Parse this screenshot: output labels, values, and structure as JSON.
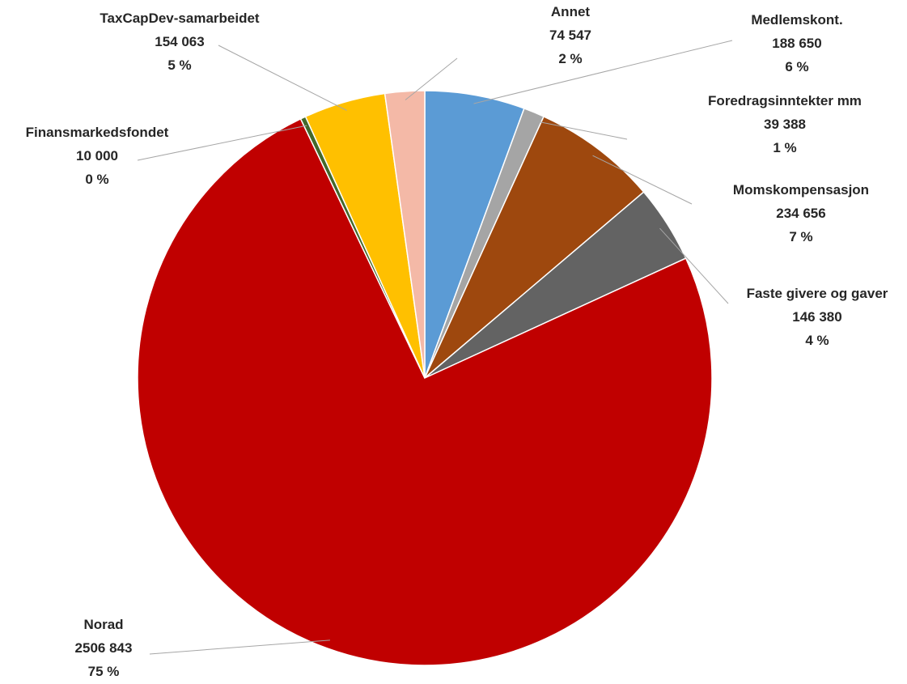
{
  "chart_data": {
    "type": "pie",
    "title": "",
    "start_angle_deg": 0,
    "direction": "clockwise",
    "slices": [
      {
        "label": "Medlemskont.",
        "value": 188650,
        "value_text": "188 650",
        "percent_text": "6 %",
        "color": "#5b9bd5"
      },
      {
        "label": "Foredragsinntekter mm",
        "value": 39388,
        "value_text": "39 388",
        "percent_text": "1 %",
        "color": "#a5a5a5"
      },
      {
        "label": "Momskompensasjon",
        "value": 234656,
        "value_text": "234 656",
        "percent_text": "7 %",
        "color": "#9e480e"
      },
      {
        "label": "Faste givere og gaver",
        "value": 146380,
        "value_text": "146 380",
        "percent_text": "4 %",
        "color": "#636363"
      },
      {
        "label": "Norad",
        "value": 2506843,
        "value_text": "2506 843",
        "percent_text": "75 %",
        "color": "#c00000"
      },
      {
        "label": "Finansmarkedsfondet",
        "value": 10000,
        "value_text": "10 000",
        "percent_text": "0 %",
        "color": "#43682b"
      },
      {
        "label": "TaxCapDev-samarbeidet",
        "value": 154063,
        "value_text": "154 063",
        "percent_text": "5 %",
        "color": "#ffc000"
      },
      {
        "label": "Annet",
        "value": 74547,
        "value_text": "74 547",
        "percent_text": "2 %",
        "color": "#f4b9a7"
      }
    ]
  }
}
